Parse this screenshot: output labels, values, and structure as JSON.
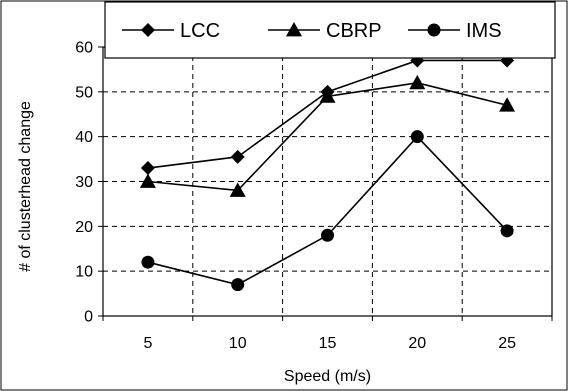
{
  "chart_data": {
    "type": "line",
    "x": [
      5,
      10,
      15,
      20,
      25
    ],
    "xlabel": "Speed (m/s)",
    "ylabel": "# of clusterhead change",
    "ylim": [
      0,
      60
    ],
    "yticks": [
      0,
      10,
      20,
      30,
      40,
      50,
      60
    ],
    "grid": true,
    "legend_position": "top",
    "series": [
      {
        "name": "LCC",
        "marker": "diamond",
        "values": [
          33,
          35.5,
          50,
          57,
          57
        ]
      },
      {
        "name": "CBRP",
        "marker": "triangle",
        "values": [
          30,
          28,
          49,
          52,
          47
        ]
      },
      {
        "name": "IMS",
        "marker": "circle",
        "values": [
          12,
          7,
          18,
          40,
          19
        ]
      }
    ],
    "colors": {
      "line": "#000000",
      "marker": "#000000",
      "grid": "#000000",
      "background": "#ffffff"
    }
  }
}
